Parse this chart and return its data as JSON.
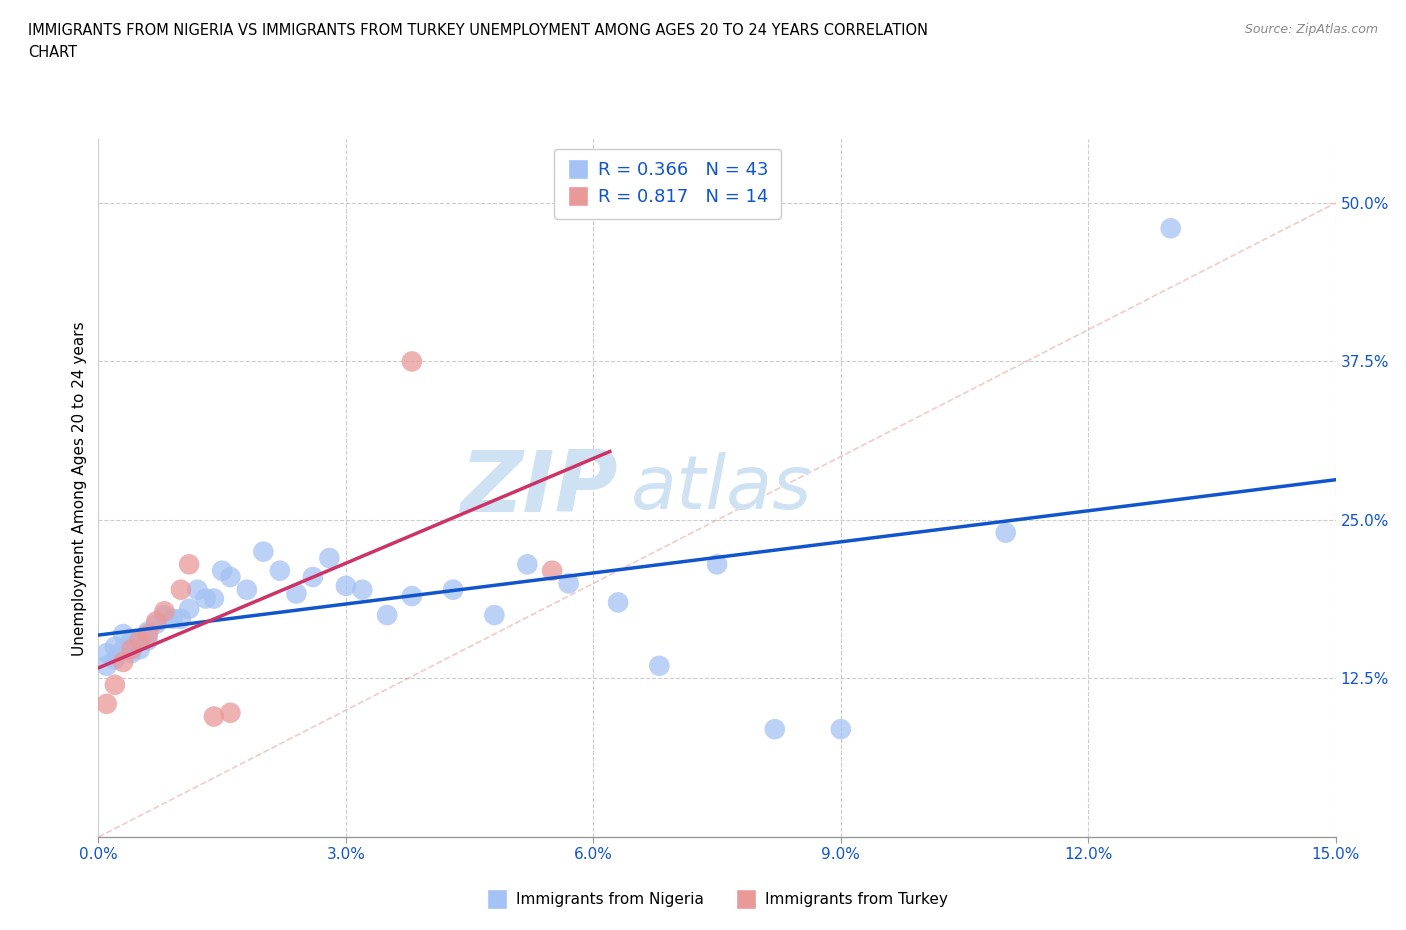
{
  "title_line1": "IMMIGRANTS FROM NIGERIA VS IMMIGRANTS FROM TURKEY UNEMPLOYMENT AMONG AGES 20 TO 24 YEARS CORRELATION",
  "title_line2": "CHART",
  "source": "Source: ZipAtlas.com",
  "xlabel_nigeria": "Immigrants from Nigeria",
  "xlabel_turkey": "Immigrants from Turkey",
  "ylabel": "Unemployment Among Ages 20 to 24 years",
  "xlim": [
    0.0,
    0.15
  ],
  "ylim": [
    0.0,
    0.55
  ],
  "xticks": [
    0.0,
    0.03,
    0.06,
    0.09,
    0.12,
    0.15
  ],
  "yticks_right": [
    0.125,
    0.25,
    0.375,
    0.5
  ],
  "ytick_labels_right": [
    "12.5%",
    "25.0%",
    "37.5%",
    "50.0%"
  ],
  "xtick_labels": [
    "0.0%",
    "3.0%",
    "6.0%",
    "9.0%",
    "12.0%",
    "15.0%"
  ],
  "R_nigeria": 0.366,
  "N_nigeria": 43,
  "R_turkey": 0.817,
  "N_turkey": 14,
  "color_nigeria": "#a4c2f4",
  "color_turkey": "#ea9999",
  "color_nigeria_line": "#1155cc",
  "color_turkey_line": "#cc3366",
  "color_diagonal": "#e06666",
  "color_diagonal_alpha": 0.35,
  "color_text_blue": "#1155cc",
  "nigeria_x": [
    0.001,
    0.001,
    0.002,
    0.002,
    0.003,
    0.003,
    0.004,
    0.004,
    0.005,
    0.005,
    0.006,
    0.006,
    0.007,
    0.008,
    0.009,
    0.01,
    0.011,
    0.012,
    0.013,
    0.014,
    0.015,
    0.016,
    0.018,
    0.02,
    0.022,
    0.024,
    0.026,
    0.028,
    0.03,
    0.032,
    0.035,
    0.038,
    0.043,
    0.048,
    0.052,
    0.057,
    0.063,
    0.068,
    0.075,
    0.082,
    0.09,
    0.11,
    0.13
  ],
  "nigeria_y": [
    0.145,
    0.135,
    0.15,
    0.14,
    0.16,
    0.148,
    0.155,
    0.145,
    0.155,
    0.148,
    0.162,
    0.155,
    0.168,
    0.175,
    0.172,
    0.172,
    0.18,
    0.195,
    0.188,
    0.188,
    0.21,
    0.205,
    0.195,
    0.225,
    0.21,
    0.192,
    0.205,
    0.22,
    0.198,
    0.195,
    0.175,
    0.19,
    0.195,
    0.175,
    0.215,
    0.2,
    0.185,
    0.135,
    0.215,
    0.085,
    0.085,
    0.24,
    0.48
  ],
  "turkey_x": [
    0.001,
    0.002,
    0.003,
    0.004,
    0.005,
    0.006,
    0.007,
    0.008,
    0.01,
    0.011,
    0.014,
    0.016,
    0.038,
    0.055
  ],
  "turkey_y": [
    0.105,
    0.12,
    0.138,
    0.148,
    0.155,
    0.16,
    0.17,
    0.178,
    0.195,
    0.215,
    0.095,
    0.098,
    0.375,
    0.21
  ],
  "watermark_zip": "ZIP",
  "watermark_atlas": "atlas",
  "watermark_color": "#cfe2f3",
  "grid_color": "#cccccc",
  "bg_color": "#ffffff"
}
